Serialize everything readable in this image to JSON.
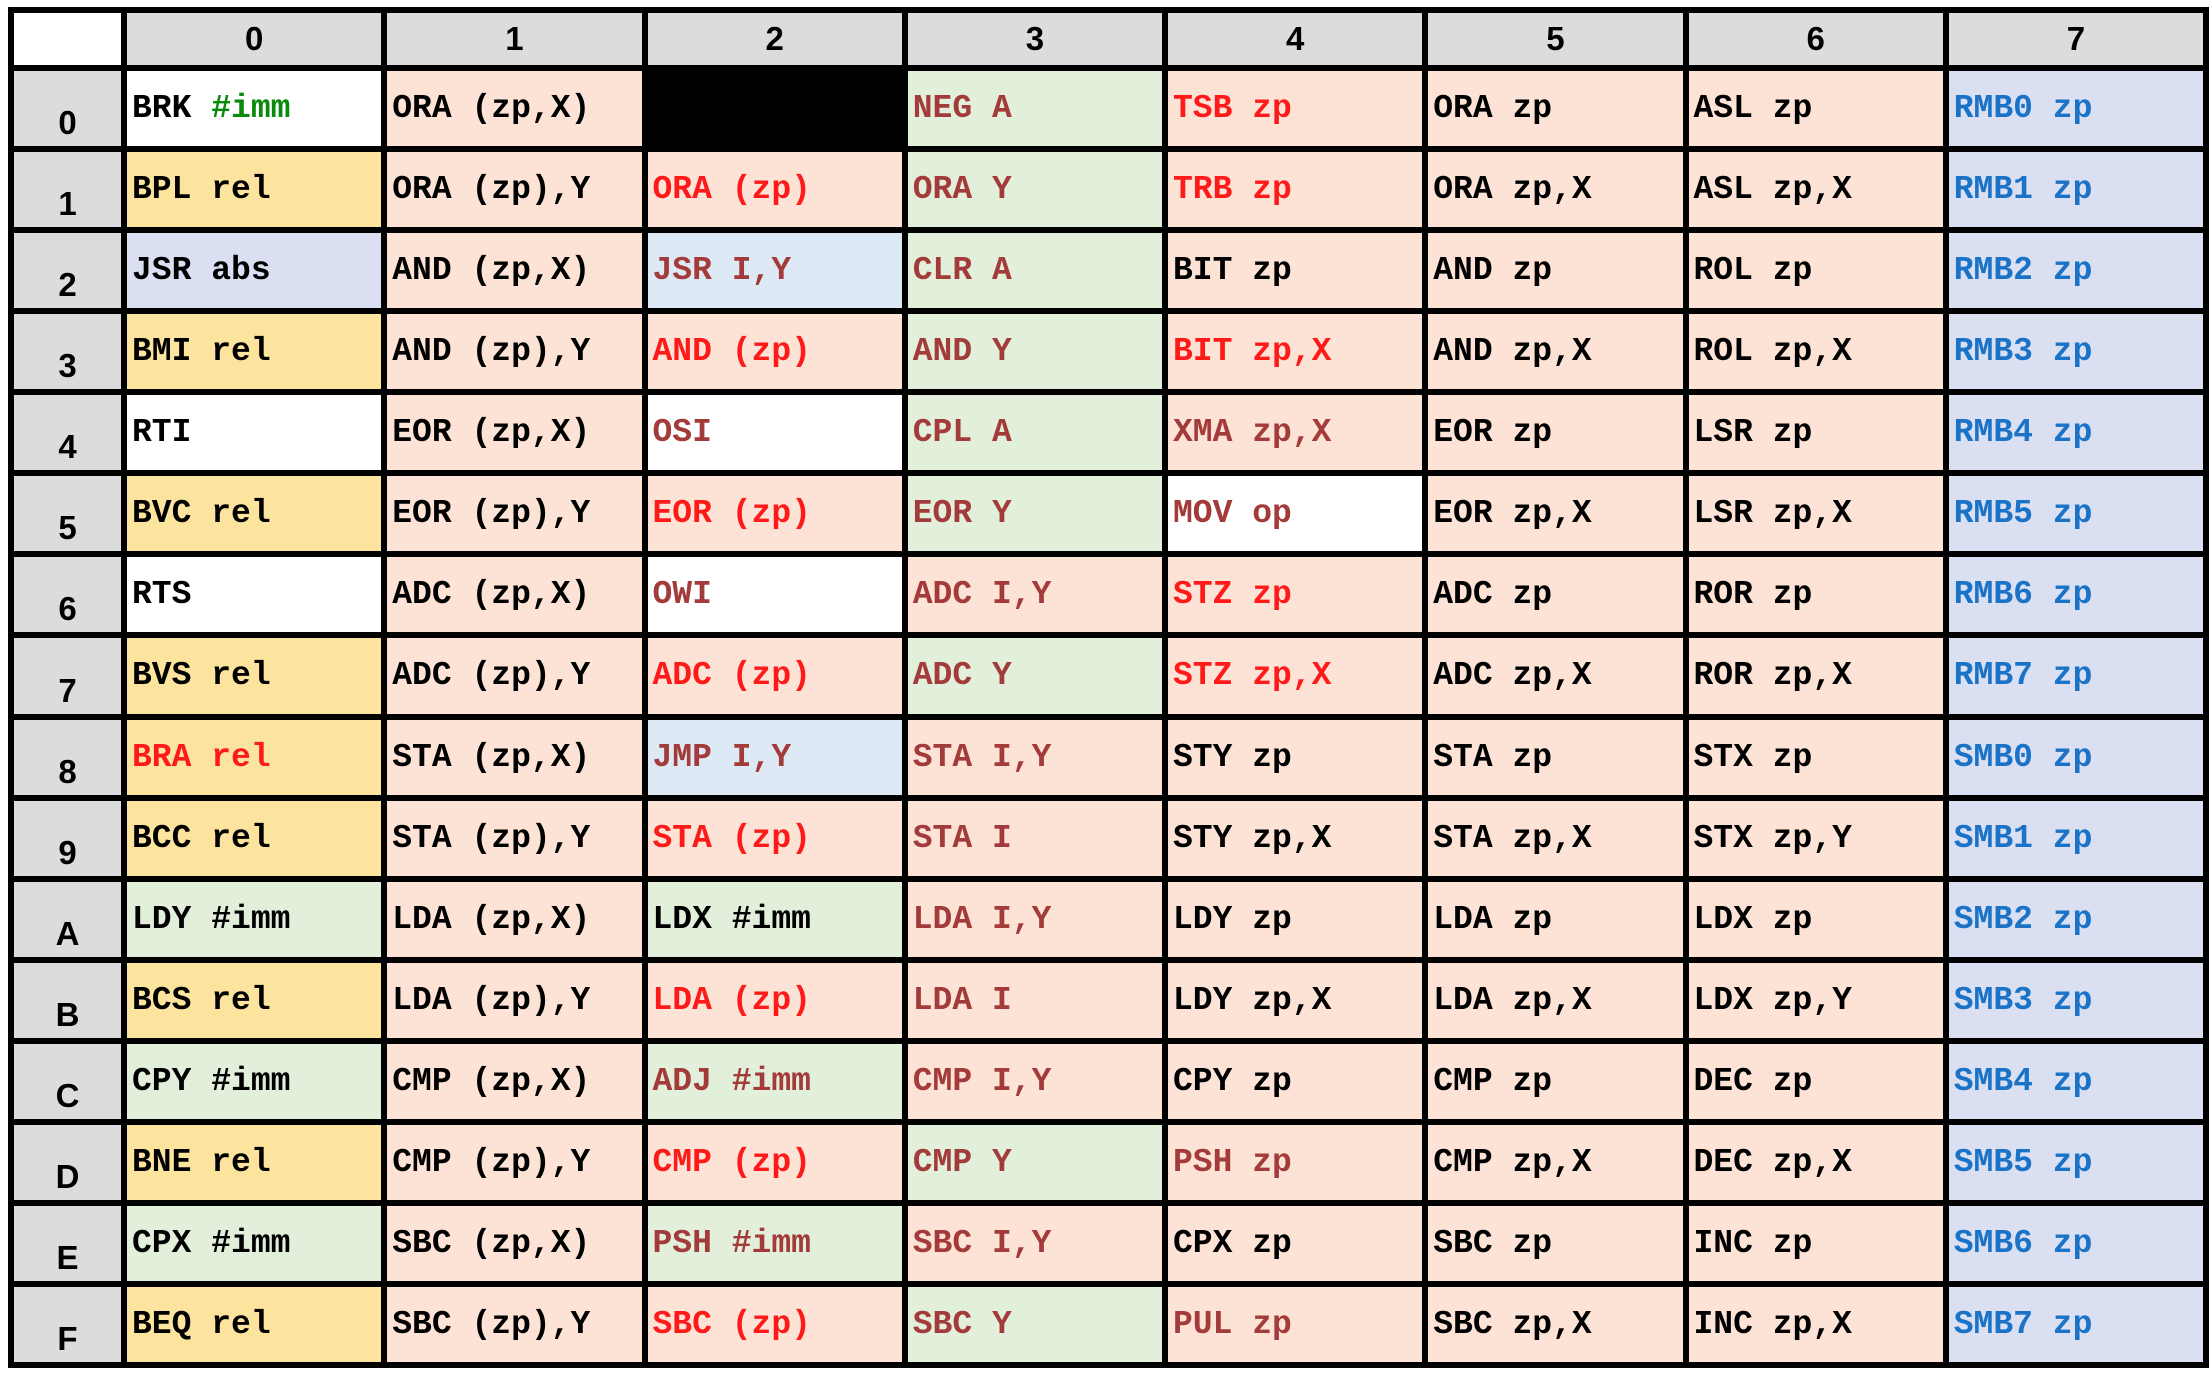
{
  "colors": {
    "header_gray": "#dcdcdc",
    "bg": {
      "white": "#ffffff",
      "yellow": "#fde49e",
      "peach": "#fce3d6",
      "green": "#e2efda",
      "blue": "#dae0f2",
      "lightblue": "#ddeaf6",
      "black": "#000000"
    },
    "text": {
      "black": "#000000",
      "red": "#ff1a1a",
      "brown": "#a33b3b",
      "blue": "#1a73c7",
      "green": "#0a8a0a"
    }
  },
  "table": {
    "columns": [
      "0",
      "1",
      "2",
      "3",
      "4",
      "5",
      "6",
      "7"
    ],
    "rows": [
      {
        "label": "0",
        "cells": [
          {
            "op": "BRK",
            "arg": "#imm",
            "bg": "white",
            "color": "black",
            "argColor": "green"
          },
          {
            "op": "ORA",
            "arg": "(zp,X)",
            "bg": "peach",
            "color": "black"
          },
          {
            "op": "",
            "arg": "",
            "bg": "black",
            "color": "black"
          },
          {
            "op": "NEG",
            "arg": "A",
            "bg": "green",
            "color": "brown"
          },
          {
            "op": "TSB",
            "arg": "zp",
            "bg": "peach",
            "color": "red"
          },
          {
            "op": "ORA",
            "arg": "zp",
            "bg": "peach",
            "color": "black"
          },
          {
            "op": "ASL",
            "arg": "zp",
            "bg": "peach",
            "color": "black"
          },
          {
            "op": "RMB0",
            "arg": "zp",
            "bg": "blue",
            "color": "blue"
          }
        ]
      },
      {
        "label": "1",
        "cells": [
          {
            "op": "BPL",
            "arg": "rel",
            "bg": "yellow",
            "color": "black"
          },
          {
            "op": "ORA",
            "arg": "(zp),Y",
            "bg": "peach",
            "color": "black"
          },
          {
            "op": "ORA",
            "arg": "(zp)",
            "bg": "peach",
            "color": "red"
          },
          {
            "op": "ORA",
            "arg": "Y",
            "bg": "green",
            "color": "brown"
          },
          {
            "op": "TRB",
            "arg": "zp",
            "bg": "peach",
            "color": "red"
          },
          {
            "op": "ORA",
            "arg": "zp,X",
            "bg": "peach",
            "color": "black"
          },
          {
            "op": "ASL",
            "arg": "zp,X",
            "bg": "peach",
            "color": "black"
          },
          {
            "op": "RMB1",
            "arg": "zp",
            "bg": "blue",
            "color": "blue"
          }
        ]
      },
      {
        "label": "2",
        "cells": [
          {
            "op": "JSR",
            "arg": "abs",
            "bg": "blue",
            "color": "black"
          },
          {
            "op": "AND",
            "arg": "(zp,X)",
            "bg": "peach",
            "color": "black"
          },
          {
            "op": "JSR",
            "arg": "I,Y",
            "bg": "lightblue",
            "color": "brown"
          },
          {
            "op": "CLR",
            "arg": "A",
            "bg": "green",
            "color": "brown"
          },
          {
            "op": "BIT",
            "arg": "zp",
            "bg": "peach",
            "color": "black"
          },
          {
            "op": "AND",
            "arg": "zp",
            "bg": "peach",
            "color": "black"
          },
          {
            "op": "ROL",
            "arg": "zp",
            "bg": "peach",
            "color": "black"
          },
          {
            "op": "RMB2",
            "arg": "zp",
            "bg": "blue",
            "color": "blue"
          }
        ]
      },
      {
        "label": "3",
        "cells": [
          {
            "op": "BMI",
            "arg": "rel",
            "bg": "yellow",
            "color": "black"
          },
          {
            "op": "AND",
            "arg": "(zp),Y",
            "bg": "peach",
            "color": "black"
          },
          {
            "op": "AND",
            "arg": "(zp)",
            "bg": "peach",
            "color": "red"
          },
          {
            "op": "AND",
            "arg": "Y",
            "bg": "green",
            "color": "brown"
          },
          {
            "op": "BIT",
            "arg": "zp,X",
            "bg": "peach",
            "color": "red"
          },
          {
            "op": "AND",
            "arg": "zp,X",
            "bg": "peach",
            "color": "black"
          },
          {
            "op": "ROL",
            "arg": "zp,X",
            "bg": "peach",
            "color": "black"
          },
          {
            "op": "RMB3",
            "arg": "zp",
            "bg": "blue",
            "color": "blue"
          }
        ]
      },
      {
        "label": "4",
        "cells": [
          {
            "op": "RTI",
            "arg": "",
            "bg": "white",
            "color": "black"
          },
          {
            "op": "EOR",
            "arg": "(zp,X)",
            "bg": "peach",
            "color": "black"
          },
          {
            "op": "OSI",
            "arg": "",
            "bg": "white",
            "color": "brown"
          },
          {
            "op": "CPL",
            "arg": "A",
            "bg": "green",
            "color": "brown"
          },
          {
            "op": "XMA",
            "arg": "zp,X",
            "bg": "peach",
            "color": "brown"
          },
          {
            "op": "EOR",
            "arg": "zp",
            "bg": "peach",
            "color": "black"
          },
          {
            "op": "LSR",
            "arg": "zp",
            "bg": "peach",
            "color": "black"
          },
          {
            "op": "RMB4",
            "arg": "zp",
            "bg": "blue",
            "color": "blue"
          }
        ]
      },
      {
        "label": "5",
        "cells": [
          {
            "op": "BVC",
            "arg": "rel",
            "bg": "yellow",
            "color": "black"
          },
          {
            "op": "EOR",
            "arg": "(zp),Y",
            "bg": "peach",
            "color": "black"
          },
          {
            "op": "EOR",
            "arg": "(zp)",
            "bg": "peach",
            "color": "red"
          },
          {
            "op": "EOR",
            "arg": "Y",
            "bg": "green",
            "color": "brown"
          },
          {
            "op": "MOV",
            "arg": "op",
            "bg": "white",
            "color": "brown"
          },
          {
            "op": "EOR",
            "arg": "zp,X",
            "bg": "peach",
            "color": "black"
          },
          {
            "op": "LSR",
            "arg": "zp,X",
            "bg": "peach",
            "color": "black"
          },
          {
            "op": "RMB5",
            "arg": "zp",
            "bg": "blue",
            "color": "blue"
          }
        ]
      },
      {
        "label": "6",
        "cells": [
          {
            "op": "RTS",
            "arg": "",
            "bg": "white",
            "color": "black"
          },
          {
            "op": "ADC",
            "arg": "(zp,X)",
            "bg": "peach",
            "color": "black"
          },
          {
            "op": "OWI",
            "arg": "",
            "bg": "white",
            "color": "brown"
          },
          {
            "op": "ADC",
            "arg": "I,Y",
            "bg": "peach",
            "color": "brown"
          },
          {
            "op": "STZ",
            "arg": "zp",
            "bg": "peach",
            "color": "red"
          },
          {
            "op": "ADC",
            "arg": "zp",
            "bg": "peach",
            "color": "black"
          },
          {
            "op": "ROR",
            "arg": "zp",
            "bg": "peach",
            "color": "black"
          },
          {
            "op": "RMB6",
            "arg": "zp",
            "bg": "blue",
            "color": "blue"
          }
        ]
      },
      {
        "label": "7",
        "cells": [
          {
            "op": "BVS",
            "arg": "rel",
            "bg": "yellow",
            "color": "black"
          },
          {
            "op": "ADC",
            "arg": "(zp),Y",
            "bg": "peach",
            "color": "black"
          },
          {
            "op": "ADC",
            "arg": "(zp)",
            "bg": "peach",
            "color": "red"
          },
          {
            "op": "ADC",
            "arg": "Y",
            "bg": "green",
            "color": "brown"
          },
          {
            "op": "STZ",
            "arg": "zp,X",
            "bg": "peach",
            "color": "red"
          },
          {
            "op": "ADC",
            "arg": "zp,X",
            "bg": "peach",
            "color": "black"
          },
          {
            "op": "ROR",
            "arg": "zp,X",
            "bg": "peach",
            "color": "black"
          },
          {
            "op": "RMB7",
            "arg": "zp",
            "bg": "blue",
            "color": "blue"
          }
        ]
      },
      {
        "label": "8",
        "cells": [
          {
            "op": "BRA",
            "arg": "rel",
            "bg": "yellow",
            "color": "red"
          },
          {
            "op": "STA",
            "arg": "(zp,X)",
            "bg": "peach",
            "color": "black"
          },
          {
            "op": "JMP",
            "arg": "I,Y",
            "bg": "lightblue",
            "color": "brown"
          },
          {
            "op": "STA",
            "arg": "I,Y",
            "bg": "peach",
            "color": "brown"
          },
          {
            "op": "STY",
            "arg": "zp",
            "bg": "peach",
            "color": "black"
          },
          {
            "op": "STA",
            "arg": "zp",
            "bg": "peach",
            "color": "black"
          },
          {
            "op": "STX",
            "arg": "zp",
            "bg": "peach",
            "color": "black"
          },
          {
            "op": "SMB0",
            "arg": "zp",
            "bg": "blue",
            "color": "blue"
          }
        ]
      },
      {
        "label": "9",
        "cells": [
          {
            "op": "BCC",
            "arg": "rel",
            "bg": "yellow",
            "color": "black"
          },
          {
            "op": "STA",
            "arg": "(zp),Y",
            "bg": "peach",
            "color": "black"
          },
          {
            "op": "STA",
            "arg": "(zp)",
            "bg": "peach",
            "color": "red"
          },
          {
            "op": "STA",
            "arg": "I",
            "bg": "peach",
            "color": "brown"
          },
          {
            "op": "STY",
            "arg": "zp,X",
            "bg": "peach",
            "color": "black"
          },
          {
            "op": "STA",
            "arg": "zp,X",
            "bg": "peach",
            "color": "black"
          },
          {
            "op": "STX",
            "arg": "zp,Y",
            "bg": "peach",
            "color": "black"
          },
          {
            "op": "SMB1",
            "arg": "zp",
            "bg": "blue",
            "color": "blue"
          }
        ]
      },
      {
        "label": "A",
        "cells": [
          {
            "op": "LDY",
            "arg": "#imm",
            "bg": "green",
            "color": "black"
          },
          {
            "op": "LDA",
            "arg": "(zp,X)",
            "bg": "peach",
            "color": "black"
          },
          {
            "op": "LDX",
            "arg": "#imm",
            "bg": "green",
            "color": "black"
          },
          {
            "op": "LDA",
            "arg": "I,Y",
            "bg": "peach",
            "color": "brown"
          },
          {
            "op": "LDY",
            "arg": "zp",
            "bg": "peach",
            "color": "black"
          },
          {
            "op": "LDA",
            "arg": "zp",
            "bg": "peach",
            "color": "black"
          },
          {
            "op": "LDX",
            "arg": "zp",
            "bg": "peach",
            "color": "black"
          },
          {
            "op": "SMB2",
            "arg": "zp",
            "bg": "blue",
            "color": "blue"
          }
        ]
      },
      {
        "label": "B",
        "cells": [
          {
            "op": "BCS",
            "arg": "rel",
            "bg": "yellow",
            "color": "black"
          },
          {
            "op": "LDA",
            "arg": "(zp),Y",
            "bg": "peach",
            "color": "black"
          },
          {
            "op": "LDA",
            "arg": "(zp)",
            "bg": "peach",
            "color": "red"
          },
          {
            "op": "LDA",
            "arg": "I",
            "bg": "peach",
            "color": "brown"
          },
          {
            "op": "LDY",
            "arg": "zp,X",
            "bg": "peach",
            "color": "black"
          },
          {
            "op": "LDA",
            "arg": "zp,X",
            "bg": "peach",
            "color": "black"
          },
          {
            "op": "LDX",
            "arg": "zp,Y",
            "bg": "peach",
            "color": "black"
          },
          {
            "op": "SMB3",
            "arg": "zp",
            "bg": "blue",
            "color": "blue"
          }
        ]
      },
      {
        "label": "C",
        "cells": [
          {
            "op": "CPY",
            "arg": "#imm",
            "bg": "green",
            "color": "black"
          },
          {
            "op": "CMP",
            "arg": "(zp,X)",
            "bg": "peach",
            "color": "black"
          },
          {
            "op": "ADJ",
            "arg": "#imm",
            "bg": "green",
            "color": "brown"
          },
          {
            "op": "CMP",
            "arg": "I,Y",
            "bg": "peach",
            "color": "brown"
          },
          {
            "op": "CPY",
            "arg": "zp",
            "bg": "peach",
            "color": "black"
          },
          {
            "op": "CMP",
            "arg": "zp",
            "bg": "peach",
            "color": "black"
          },
          {
            "op": "DEC",
            "arg": "zp",
            "bg": "peach",
            "color": "black"
          },
          {
            "op": "SMB4",
            "arg": "zp",
            "bg": "blue",
            "color": "blue"
          }
        ]
      },
      {
        "label": "D",
        "cells": [
          {
            "op": "BNE",
            "arg": "rel",
            "bg": "yellow",
            "color": "black"
          },
          {
            "op": "CMP",
            "arg": "(zp),Y",
            "bg": "peach",
            "color": "black"
          },
          {
            "op": "CMP",
            "arg": "(zp)",
            "bg": "peach",
            "color": "red"
          },
          {
            "op": "CMP",
            "arg": "Y",
            "bg": "green",
            "color": "brown"
          },
          {
            "op": "PSH",
            "arg": "zp",
            "bg": "peach",
            "color": "brown"
          },
          {
            "op": "CMP",
            "arg": "zp,X",
            "bg": "peach",
            "color": "black"
          },
          {
            "op": "DEC",
            "arg": "zp,X",
            "bg": "peach",
            "color": "black"
          },
          {
            "op": "SMB5",
            "arg": "zp",
            "bg": "blue",
            "color": "blue"
          }
        ]
      },
      {
        "label": "E",
        "cells": [
          {
            "op": "CPX",
            "arg": "#imm",
            "bg": "green",
            "color": "black"
          },
          {
            "op": "SBC",
            "arg": "(zp,X)",
            "bg": "peach",
            "color": "black"
          },
          {
            "op": "PSH",
            "arg": "#imm",
            "bg": "green",
            "color": "brown"
          },
          {
            "op": "SBC",
            "arg": "I,Y",
            "bg": "peach",
            "color": "brown"
          },
          {
            "op": "CPX",
            "arg": "zp",
            "bg": "peach",
            "color": "black"
          },
          {
            "op": "SBC",
            "arg": "zp",
            "bg": "peach",
            "color": "black"
          },
          {
            "op": "INC",
            "arg": "zp",
            "bg": "peach",
            "color": "black"
          },
          {
            "op": "SMB6",
            "arg": "zp",
            "bg": "blue",
            "color": "blue"
          }
        ]
      },
      {
        "label": "F",
        "cells": [
          {
            "op": "BEQ",
            "arg": "rel",
            "bg": "yellow",
            "color": "black"
          },
          {
            "op": "SBC",
            "arg": "(zp),Y",
            "bg": "peach",
            "color": "black"
          },
          {
            "op": "SBC",
            "arg": "(zp)",
            "bg": "peach",
            "color": "red"
          },
          {
            "op": "SBC",
            "arg": "Y",
            "bg": "green",
            "color": "brown"
          },
          {
            "op": "PUL",
            "arg": "zp",
            "bg": "peach",
            "color": "brown"
          },
          {
            "op": "SBC",
            "arg": "zp,X",
            "bg": "peach",
            "color": "black"
          },
          {
            "op": "INC",
            "arg": "zp,X",
            "bg": "peach",
            "color": "black"
          },
          {
            "op": "SMB7",
            "arg": "zp",
            "bg": "blue",
            "color": "blue"
          }
        ]
      }
    ]
  }
}
